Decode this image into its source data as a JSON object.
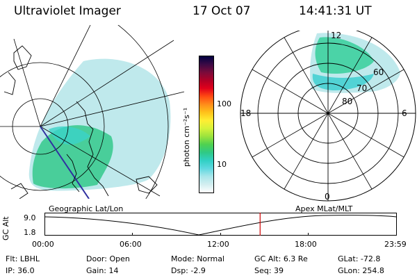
{
  "header": {
    "instrument": "Ultraviolet Imager",
    "date": "17 Oct 07",
    "time": "14:41:31 UT"
  },
  "geo_panel": {
    "label": "Geographic Lat/Lon"
  },
  "colorbar": {
    "unit_label": "photon cm⁻²s⁻¹",
    "tick_100": "100",
    "tick_10": "10",
    "scale": "log",
    "colors": [
      "#000040",
      "#3b0a45",
      "#7a0b3b",
      "#b00026",
      "#e0001b",
      "#ff4a12",
      "#ff8c1a",
      "#ffc21a",
      "#ffee33",
      "#d6f23a",
      "#9be33d",
      "#4fd150",
      "#2fc985",
      "#31d0c4",
      "#5fd8e0",
      "#a9e6ea",
      "#d3eef0",
      "#ffffff"
    ]
  },
  "polar_panel": {
    "label": "Apex MLat/MLT",
    "mlt_labels": {
      "top": "12",
      "left": "18",
      "right": "6",
      "bottom": "0"
    },
    "lat_labels": [
      "60",
      "70",
      "80"
    ]
  },
  "timeline": {
    "ylabel": "GC Alt",
    "ytick_top": "9.0",
    "ytick_bottom": "1.8",
    "xticks": [
      "00:00",
      "06:00",
      "12:00",
      "18:00",
      "23:59"
    ],
    "marker_color": "#d00000",
    "marker_time": "14:41:31"
  },
  "status": {
    "flt": {
      "label": "Flt:",
      "value": "LBHL"
    },
    "ip": {
      "label": "IP:",
      "value": "36.0"
    },
    "door": {
      "label": "Door:",
      "value": "Open"
    },
    "gain": {
      "label": "Gain:",
      "value": "14"
    },
    "mode": {
      "label": "Mode:",
      "value": "Normal"
    },
    "dsp": {
      "label": "Dsp:",
      "value": "-2.9"
    },
    "gcalt": {
      "label": "GC Alt:",
      "value": "6.3 Re"
    },
    "seq": {
      "label": "Seq:",
      "value": "39"
    },
    "glat": {
      "label": "GLat:",
      "value": "-72.8"
    },
    "glon": {
      "label": "GLon:",
      "value": "254.8"
    }
  }
}
